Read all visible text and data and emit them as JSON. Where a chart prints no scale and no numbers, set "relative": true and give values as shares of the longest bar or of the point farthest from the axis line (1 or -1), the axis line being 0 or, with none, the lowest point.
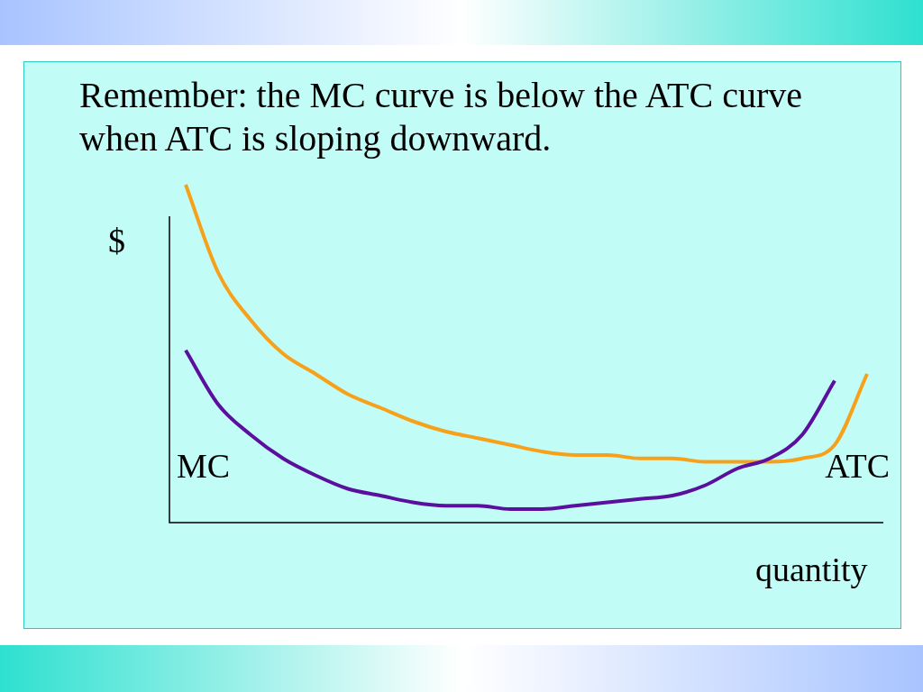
{
  "chart_data": {
    "type": "line",
    "title": "Remember:  the MC curve is below the ATC curve when ATC is sloping downward.",
    "xlabel": "quantity",
    "ylabel": "$",
    "relative": true,
    "legend": false,
    "marker": "none",
    "categories": [
      null,
      null,
      null,
      null,
      null,
      null,
      null,
      null,
      null,
      null,
      null,
      null,
      null,
      null,
      null,
      null,
      null,
      null,
      null,
      null,
      null,
      null
    ],
    "series": [
      {
        "name": "MC",
        "color": "#5b0f9e",
        "values": [
          0.51,
          0.35,
          0.26,
          0.19,
          0.14,
          0.1,
          0.08,
          0.06,
          0.05,
          0.05,
          0.04,
          0.04,
          0.05,
          0.06,
          0.07,
          0.08,
          0.11,
          0.16,
          0.19,
          0.26,
          0.42,
          null
        ]
      },
      {
        "name": "ATC",
        "color": "#f7a11a",
        "values": [
          1.0,
          0.74,
          0.6,
          0.5,
          0.44,
          0.38,
          0.34,
          0.3,
          0.27,
          0.25,
          0.23,
          0.21,
          0.2,
          0.2,
          0.19,
          0.19,
          0.18,
          0.18,
          0.18,
          0.19,
          0.23,
          0.44
        ]
      }
    ]
  }
}
